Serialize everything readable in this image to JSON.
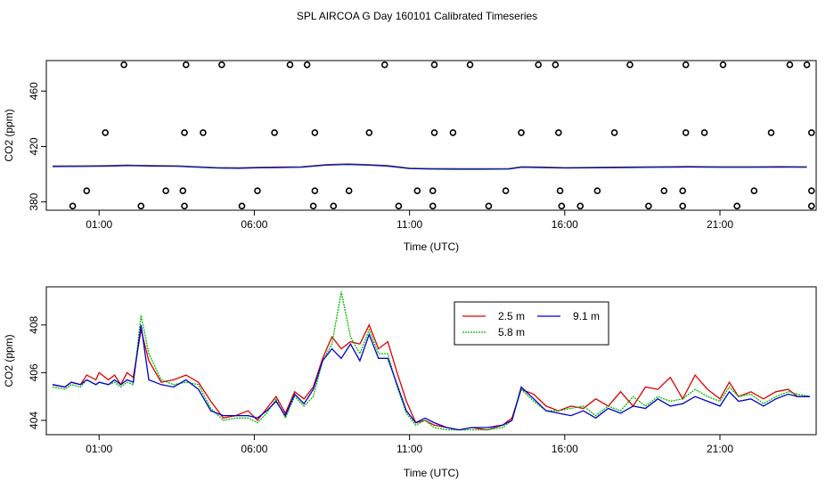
{
  "title": "SPL AIRCOA G  Day 160101  Calibrated Timeseries",
  "colors": {
    "series_2_5": "#dd0000",
    "series_5_8": "#00bb00",
    "series_9_1": "#0000cc",
    "axis": "#000000"
  },
  "chart_data": [
    {
      "type": "scatter+line",
      "xlabel": "Time (UTC)",
      "ylabel": "CO2 (ppm)",
      "xlim": [
        -0.7,
        24.1
      ],
      "ylim": [
        374,
        482
      ],
      "xticks": [
        1,
        6,
        11,
        16,
        21
      ],
      "xtick_labels": [
        "01:00",
        "06:00",
        "11:00",
        "16:00",
        "21:00"
      ],
      "yticks": [
        380,
        420,
        460
      ],
      "ytick_labels": [
        "380",
        "420",
        "460"
      ],
      "calibration_points": {
        "levels": [
          377,
          388,
          430,
          479
        ],
        "x_377": [
          0.15,
          2.35,
          3.75,
          5.6,
          7.9,
          8.55,
          10.65,
          11.75,
          13.55,
          15.9,
          16.5,
          18.7,
          19.8,
          21.55,
          23.95
        ],
        "x_388": [
          0.6,
          3.15,
          3.7,
          6.1,
          7.95,
          9.05,
          11.25,
          11.75,
          14.1,
          15.85,
          17.05,
          19.2,
          19.8,
          22.1,
          23.95
        ],
        "x_430": [
          1.2,
          3.75,
          4.35,
          6.65,
          7.95,
          9.7,
          11.8,
          12.4,
          14.6,
          15.8,
          17.6,
          19.9,
          20.5,
          22.65,
          23.95
        ],
        "x_479": [
          1.8,
          3.8,
          4.95,
          7.15,
          7.7,
          10.2,
          11.8,
          12.95,
          15.15,
          15.7,
          18.1,
          19.9,
          21.1,
          23.25,
          23.8
        ]
      },
      "line": {
        "x": [
          -0.5,
          0.5,
          1.3,
          1.9,
          2.3,
          2.8,
          3.5,
          4.2,
          4.8,
          5.5,
          6.1,
          6.8,
          7.5,
          8.3,
          9.0,
          9.7,
          10.3,
          11.0,
          11.7,
          12.5,
          13.3,
          14.2,
          14.6,
          15.2,
          16.0,
          17.0,
          18.0,
          19.0,
          20.0,
          21.0,
          22.0,
          23.0,
          23.8
        ],
        "y": [
          405.5,
          405.6,
          405.8,
          406.2,
          406.0,
          405.8,
          405.7,
          405.0,
          404.4,
          404.2,
          404.6,
          404.8,
          405.0,
          406.5,
          407.0,
          406.5,
          405.8,
          404.0,
          403.7,
          403.6,
          403.6,
          403.7,
          405.0,
          404.8,
          404.4,
          404.6,
          404.8,
          405.0,
          405.2,
          405.0,
          405.0,
          405.1,
          405.0
        ]
      }
    },
    {
      "type": "line",
      "xlabel": "Time (UTC)",
      "ylabel": "CO2 (ppm)",
      "xlim": [
        -0.7,
        24.1
      ],
      "ylim": [
        403.4,
        409.6
      ],
      "xticks": [
        1,
        6,
        11,
        16,
        21
      ],
      "xtick_labels": [
        "01:00",
        "06:00",
        "11:00",
        "16:00",
        "21:00"
      ],
      "yticks": [
        404,
        406,
        408
      ],
      "ytick_labels": [
        "404",
        "406",
        "408"
      ],
      "legend": [
        "2.5 m",
        "5.8 m",
        "9.1 m"
      ],
      "series": [
        {
          "name": "2.5 m",
          "x": [
            -0.5,
            -0.1,
            0.1,
            0.4,
            0.6,
            0.9,
            1.0,
            1.3,
            1.5,
            1.7,
            1.9,
            2.1,
            2.35,
            2.6,
            3.0,
            3.4,
            3.8,
            4.2,
            4.6,
            5.0,
            5.4,
            5.8,
            6.1,
            6.4,
            6.7,
            7.0,
            7.3,
            7.6,
            7.9,
            8.2,
            8.5,
            8.8,
            9.1,
            9.4,
            9.7,
            10.0,
            10.3,
            10.6,
            10.9,
            11.2,
            11.5,
            11.8,
            12.2,
            12.6,
            13.0,
            13.5,
            14.0,
            14.3,
            14.6,
            15.0,
            15.4,
            15.8,
            16.2,
            16.6,
            17.0,
            17.4,
            17.8,
            18.2,
            18.6,
            19.0,
            19.4,
            19.8,
            20.2,
            20.6,
            21.0,
            21.3,
            21.6,
            22.0,
            22.4,
            22.8,
            23.2,
            23.5,
            23.9
          ],
          "y": [
            405.5,
            405.4,
            405.6,
            405.5,
            405.9,
            405.7,
            406.0,
            405.7,
            405.9,
            405.5,
            406.0,
            405.8,
            407.8,
            406.5,
            405.6,
            405.7,
            405.9,
            405.6,
            404.8,
            404.1,
            404.2,
            404.4,
            404.0,
            404.5,
            405.0,
            404.3,
            405.2,
            404.9,
            405.4,
            406.6,
            407.5,
            407.0,
            407.3,
            407.2,
            408.0,
            407.0,
            407.3,
            406.0,
            404.8,
            403.9,
            404.0,
            403.8,
            403.7,
            403.6,
            403.7,
            403.6,
            403.8,
            404.1,
            405.3,
            405.1,
            404.6,
            404.4,
            404.6,
            404.5,
            404.9,
            404.6,
            405.2,
            404.6,
            405.4,
            405.3,
            405.8,
            404.9,
            405.9,
            405.3,
            404.9,
            405.6,
            405.0,
            405.2,
            404.9,
            405.2,
            405.3,
            405.0,
            405.0
          ]
        },
        {
          "name": "5.8 m",
          "x": [
            -0.5,
            -0.1,
            0.1,
            0.4,
            0.6,
            0.9,
            1.0,
            1.3,
            1.5,
            1.7,
            1.9,
            2.1,
            2.35,
            2.6,
            3.0,
            3.4,
            3.8,
            4.2,
            4.6,
            5.0,
            5.4,
            5.8,
            6.1,
            6.4,
            6.7,
            7.0,
            7.3,
            7.6,
            7.9,
            8.2,
            8.5,
            8.8,
            9.1,
            9.4,
            9.7,
            10.0,
            10.3,
            10.6,
            10.9,
            11.2,
            11.5,
            11.8,
            12.2,
            12.6,
            13.0,
            13.5,
            14.0,
            14.3,
            14.6,
            15.0,
            15.4,
            15.8,
            16.2,
            16.6,
            17.0,
            17.4,
            17.8,
            18.2,
            18.6,
            19.0,
            19.4,
            19.8,
            20.2,
            20.6,
            21.0,
            21.3,
            21.6,
            22.0,
            22.4,
            22.8,
            23.2,
            23.5,
            23.9
          ],
          "y": [
            405.4,
            405.3,
            405.5,
            405.4,
            405.7,
            405.5,
            405.6,
            405.5,
            405.6,
            405.4,
            405.6,
            405.5,
            408.4,
            406.8,
            405.7,
            405.5,
            405.6,
            405.5,
            404.5,
            404.0,
            404.1,
            404.1,
            403.9,
            404.3,
            404.9,
            404.1,
            405.0,
            404.6,
            405.0,
            406.5,
            407.2,
            409.4,
            407.5,
            406.8,
            407.8,
            406.8,
            406.8,
            405.4,
            404.3,
            403.8,
            404.0,
            403.7,
            403.6,
            403.6,
            403.6,
            403.6,
            403.7,
            404.0,
            405.3,
            404.8,
            404.4,
            404.4,
            404.5,
            404.6,
            404.2,
            404.6,
            404.4,
            405.0,
            404.6,
            405.0,
            404.8,
            404.9,
            405.3,
            405.0,
            404.8,
            405.4,
            405.0,
            405.1,
            404.7,
            405.0,
            405.2,
            405.1,
            405.0
          ]
        },
        {
          "name": "9.1 m",
          "x": [
            -0.5,
            -0.1,
            0.1,
            0.4,
            0.6,
            0.9,
            1.0,
            1.3,
            1.5,
            1.7,
            1.9,
            2.1,
            2.35,
            2.6,
            3.0,
            3.4,
            3.8,
            4.2,
            4.6,
            5.0,
            5.4,
            5.8,
            6.1,
            6.4,
            6.7,
            7.0,
            7.3,
            7.6,
            7.9,
            8.2,
            8.5,
            8.8,
            9.1,
            9.4,
            9.7,
            10.0,
            10.3,
            10.6,
            10.9,
            11.2,
            11.5,
            11.8,
            12.2,
            12.6,
            13.0,
            13.5,
            14.0,
            14.3,
            14.6,
            15.0,
            15.4,
            15.8,
            16.2,
            16.6,
            17.0,
            17.4,
            17.8,
            18.2,
            18.6,
            19.0,
            19.4,
            19.8,
            20.2,
            20.6,
            21.0,
            21.3,
            21.6,
            22.0,
            22.4,
            22.8,
            23.2,
            23.5,
            23.9
          ],
          "y": [
            405.5,
            405.4,
            405.6,
            405.5,
            405.7,
            405.5,
            405.6,
            405.5,
            405.7,
            405.5,
            405.7,
            405.6,
            408.0,
            405.7,
            405.5,
            405.4,
            405.7,
            405.3,
            404.4,
            404.2,
            404.2,
            404.2,
            404.1,
            404.4,
            404.8,
            404.2,
            405.1,
            404.7,
            405.3,
            406.5,
            407.0,
            406.6,
            407.2,
            406.5,
            407.6,
            406.6,
            406.6,
            405.5,
            404.4,
            403.9,
            404.1,
            403.9,
            403.7,
            403.6,
            403.7,
            403.7,
            403.8,
            404.0,
            405.4,
            404.9,
            404.4,
            404.3,
            404.2,
            404.4,
            404.1,
            404.5,
            404.3,
            404.6,
            404.5,
            404.9,
            404.6,
            404.7,
            405.0,
            404.8,
            404.6,
            405.2,
            404.8,
            404.9,
            404.6,
            404.9,
            405.1,
            405.0,
            405.0
          ]
        }
      ]
    }
  ]
}
